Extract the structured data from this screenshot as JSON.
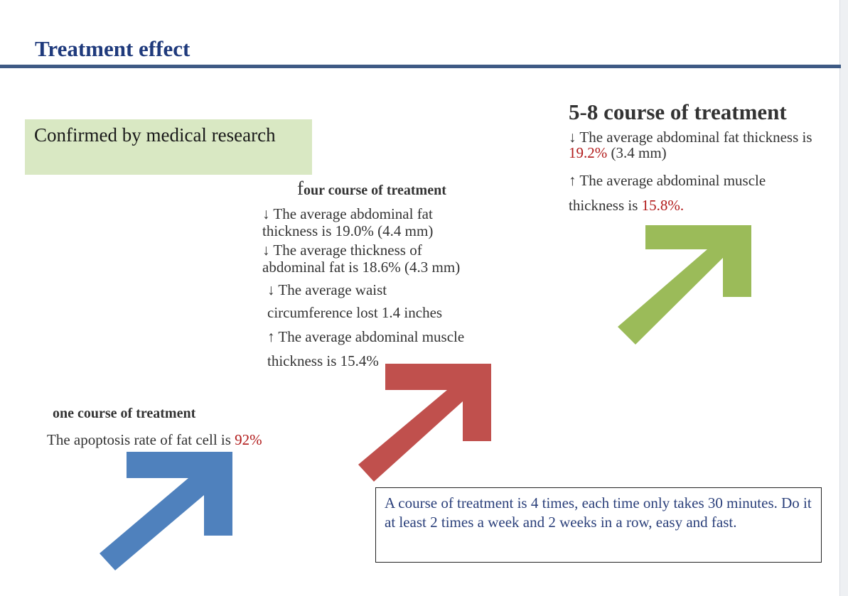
{
  "header": {
    "title": "Treatment effect"
  },
  "badge": {
    "text": "Confirmed by medical research"
  },
  "course_one": {
    "heading": "one course of treatment",
    "line_prefix": "The apoptosis rate of fat cell is ",
    "line_value": "92%"
  },
  "course_four": {
    "heading_initial": "f",
    "heading_rest": "our course of treatment",
    "line1a": "↓ The average abdominal fat",
    "line1b": "thickness is 19.0% (4.4 mm)",
    "line2a": "↓ The average thickness of",
    "line2b": "abdominal fat is 18.6% (4.3 mm)",
    "line3a": "↓ The average waist",
    "line3b": "circumference lost 1.4 inches",
    "line4a": "↑ The average abdominal muscle",
    "line4b": "thickness is 15.4%"
  },
  "course_five_eight": {
    "heading": "5-8 course of treatment",
    "line1a": "↓ The average abdominal fat thickness is",
    "line1b_value": "19.2%",
    "line1b_rest": " (3.4 mm)",
    "line2a": "↑ The average abdominal muscle",
    "line2b_prefix": "thickness is ",
    "line2b_value": "15.8%."
  },
  "note": {
    "text": "A course of treatment is 4 times, each time only takes 30 minutes. Do it at least 2 times a week and 2 weeks in a row, easy and fast."
  },
  "colors": {
    "title": "#1f3a7c",
    "highlight": "#b11a1a",
    "arrow_blue": "#4f81bd",
    "arrow_red": "#c0504d",
    "arrow_green": "#9bbb59",
    "badge_bg": "#d9e8c3"
  }
}
